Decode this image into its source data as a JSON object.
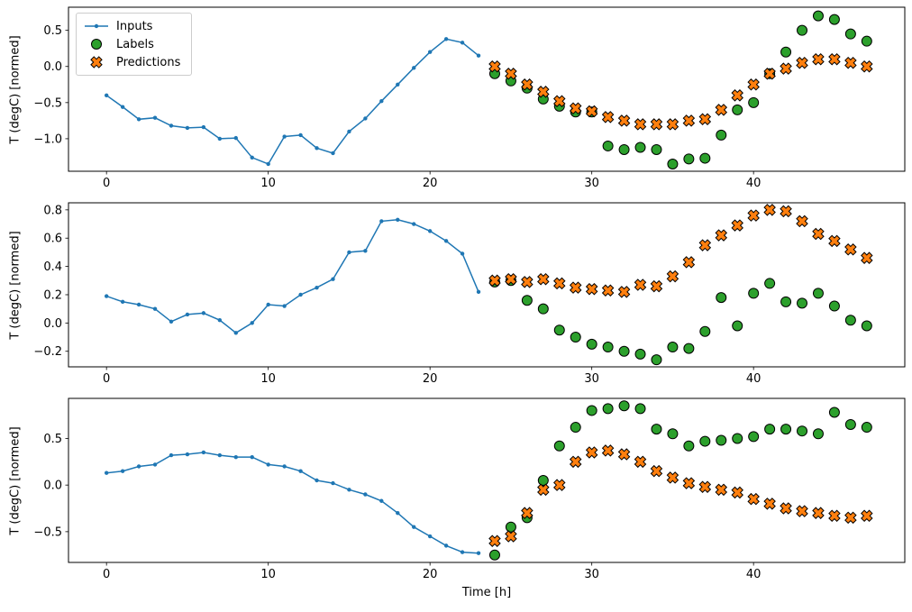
{
  "figure": {
    "background": "#ffffff",
    "xlabel": "Time [h]",
    "legend": {
      "items": [
        {
          "label": "Inputs",
          "marker": "line-dot",
          "color": "#1f77b4"
        },
        {
          "label": "Labels",
          "marker": "circle",
          "color": "#2ca02c"
        },
        {
          "label": "Predictions",
          "marker": "x-cross",
          "color": "#ff7f0e"
        }
      ]
    }
  },
  "chart_data": [
    {
      "type": "line",
      "title": "",
      "ylabel": "T (degC) [normed]",
      "xlim": [
        -2.35,
        49.35
      ],
      "ylim": [
        -1.45,
        0.82
      ],
      "xticks": [
        0,
        10,
        20,
        30,
        40
      ],
      "yticks": [
        0.5,
        0.0,
        -0.5,
        -1.0
      ],
      "grid": false,
      "series": [
        {
          "name": "Inputs",
          "style": "line-dot",
          "color": "#1f77b4",
          "x": [
            0,
            1,
            2,
            3,
            4,
            5,
            6,
            7,
            8,
            9,
            10,
            11,
            12,
            13,
            14,
            15,
            16,
            17,
            18,
            19,
            20,
            21,
            22,
            23
          ],
          "y": [
            -0.4,
            -0.56,
            -0.73,
            -0.71,
            -0.82,
            -0.85,
            -0.84,
            -1.0,
            -0.99,
            -1.26,
            -1.35,
            -0.97,
            -0.95,
            -1.13,
            -1.2,
            -0.9,
            -0.72,
            -0.48,
            -0.25,
            -0.02,
            0.2,
            0.38,
            0.33,
            0.15
          ]
        },
        {
          "name": "Labels",
          "style": "circle",
          "color": "#2ca02c",
          "edge_color": "#000000",
          "x": [
            24,
            25,
            26,
            27,
            28,
            29,
            30,
            31,
            32,
            33,
            34,
            35,
            36,
            37,
            38,
            39,
            40,
            41,
            42,
            43,
            44,
            45,
            46,
            47
          ],
          "y": [
            -0.1,
            -0.2,
            -0.3,
            -0.45,
            -0.55,
            -0.63,
            -0.63,
            -1.1,
            -1.15,
            -1.12,
            -1.15,
            -1.35,
            -1.28,
            -1.27,
            -0.95,
            -0.6,
            -0.5,
            -0.1,
            0.2,
            0.5,
            0.7,
            0.65,
            0.45,
            0.35
          ]
        },
        {
          "name": "Predictions",
          "style": "x-cross",
          "color": "#ff7f0e",
          "edge_color": "#000000",
          "x": [
            24,
            25,
            26,
            27,
            28,
            29,
            30,
            31,
            32,
            33,
            34,
            35,
            36,
            37,
            38,
            39,
            40,
            41,
            42,
            43,
            44,
            45,
            46,
            47
          ],
          "y": [
            0.0,
            -0.1,
            -0.25,
            -0.35,
            -0.48,
            -0.58,
            -0.62,
            -0.7,
            -0.75,
            -0.8,
            -0.8,
            -0.8,
            -0.75,
            -0.73,
            -0.6,
            -0.4,
            -0.25,
            -0.1,
            -0.03,
            0.05,
            0.1,
            0.1,
            0.05,
            0.0
          ]
        }
      ]
    },
    {
      "type": "line",
      "title": "",
      "ylabel": "T (degC) [normed]",
      "xlim": [
        -2.35,
        49.35
      ],
      "ylim": [
        -0.31,
        0.85
      ],
      "xticks": [
        0,
        10,
        20,
        30,
        40
      ],
      "yticks": [
        0.8,
        0.6,
        0.4,
        0.2,
        0.0,
        -0.2
      ],
      "grid": false,
      "series": [
        {
          "name": "Inputs",
          "style": "line-dot",
          "color": "#1f77b4",
          "x": [
            0,
            1,
            2,
            3,
            4,
            5,
            6,
            7,
            8,
            9,
            10,
            11,
            12,
            13,
            14,
            15,
            16,
            17,
            18,
            19,
            20,
            21,
            22,
            23
          ],
          "y": [
            0.19,
            0.15,
            0.13,
            0.1,
            0.01,
            0.06,
            0.07,
            0.02,
            -0.07,
            0.0,
            0.13,
            0.12,
            0.2,
            0.25,
            0.31,
            0.5,
            0.51,
            0.72,
            0.73,
            0.7,
            0.65,
            0.58,
            0.49,
            0.22
          ]
        },
        {
          "name": "Labels",
          "style": "circle",
          "color": "#2ca02c",
          "edge_color": "#000000",
          "x": [
            24,
            25,
            26,
            27,
            28,
            29,
            30,
            31,
            32,
            33,
            34,
            35,
            36,
            37,
            38,
            39,
            40,
            41,
            42,
            43,
            44,
            45,
            46,
            47
          ],
          "y": [
            0.29,
            0.3,
            0.16,
            0.1,
            -0.05,
            -0.1,
            -0.15,
            -0.17,
            -0.2,
            -0.22,
            -0.26,
            -0.17,
            -0.18,
            -0.06,
            0.18,
            -0.02,
            0.21,
            0.28,
            0.15,
            0.14,
            0.21,
            0.12,
            0.02,
            -0.02
          ]
        },
        {
          "name": "Predictions",
          "style": "x-cross",
          "color": "#ff7f0e",
          "edge_color": "#000000",
          "x": [
            24,
            25,
            26,
            27,
            28,
            29,
            30,
            31,
            32,
            33,
            34,
            35,
            36,
            37,
            38,
            39,
            40,
            41,
            42,
            43,
            44,
            45,
            46,
            47
          ],
          "y": [
            0.3,
            0.31,
            0.29,
            0.31,
            0.28,
            0.25,
            0.24,
            0.23,
            0.22,
            0.27,
            0.26,
            0.33,
            0.43,
            0.55,
            0.62,
            0.69,
            0.76,
            0.8,
            0.79,
            0.72,
            0.63,
            0.58,
            0.52,
            0.46
          ]
        }
      ]
    },
    {
      "type": "line",
      "title": "",
      "ylabel": "T (degC) [normed]",
      "xlim": [
        -2.35,
        49.35
      ],
      "ylim": [
        -0.83,
        0.93
      ],
      "xticks": [
        0,
        10,
        20,
        30,
        40
      ],
      "yticks": [
        0.5,
        0.0,
        -0.5
      ],
      "xlabel": "Time [h]",
      "grid": false,
      "series": [
        {
          "name": "Inputs",
          "style": "line-dot",
          "color": "#1f77b4",
          "x": [
            0,
            1,
            2,
            3,
            4,
            5,
            6,
            7,
            8,
            9,
            10,
            11,
            12,
            13,
            14,
            15,
            16,
            17,
            18,
            19,
            20,
            21,
            22,
            23
          ],
          "y": [
            0.13,
            0.15,
            0.2,
            0.22,
            0.32,
            0.33,
            0.35,
            0.32,
            0.3,
            0.3,
            0.22,
            0.2,
            0.15,
            0.05,
            0.02,
            -0.05,
            -0.1,
            -0.17,
            -0.3,
            -0.45,
            -0.55,
            -0.65,
            -0.72,
            -0.73
          ]
        },
        {
          "name": "Labels",
          "style": "circle",
          "color": "#2ca02c",
          "edge_color": "#000000",
          "x": [
            24,
            25,
            26,
            27,
            28,
            29,
            30,
            31,
            32,
            33,
            34,
            35,
            36,
            37,
            38,
            39,
            40,
            41,
            42,
            43,
            44,
            45,
            46,
            47
          ],
          "y": [
            -0.75,
            -0.45,
            -0.35,
            0.05,
            0.42,
            0.62,
            0.8,
            0.82,
            0.85,
            0.82,
            0.6,
            0.55,
            0.42,
            0.47,
            0.48,
            0.5,
            0.52,
            0.6,
            0.6,
            0.58,
            0.55,
            0.78,
            0.65,
            0.62
          ]
        },
        {
          "name": "Predictions",
          "style": "x-cross",
          "color": "#ff7f0e",
          "edge_color": "#000000",
          "x": [
            24,
            25,
            26,
            27,
            28,
            29,
            30,
            31,
            32,
            33,
            34,
            35,
            36,
            37,
            38,
            39,
            40,
            41,
            42,
            43,
            44,
            45,
            46,
            47
          ],
          "y": [
            -0.6,
            -0.55,
            -0.3,
            -0.05,
            0.0,
            0.25,
            0.35,
            0.37,
            0.33,
            0.25,
            0.15,
            0.08,
            0.02,
            -0.02,
            -0.05,
            -0.08,
            -0.15,
            -0.2,
            -0.25,
            -0.28,
            -0.3,
            -0.33,
            -0.35,
            -0.33
          ]
        }
      ]
    }
  ]
}
